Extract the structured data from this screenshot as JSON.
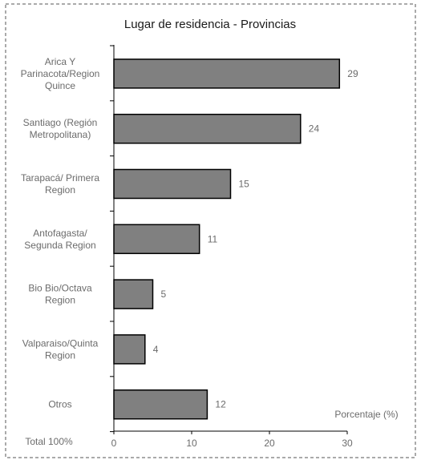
{
  "chart_data": {
    "type": "bar",
    "orientation": "horizontal",
    "title": "Lugar de residencia - Provincias",
    "categories": [
      [
        "Arica Y",
        "Parinacota/Region",
        "Quince"
      ],
      [
        "Santiago (Región",
        "Metropolitana)"
      ],
      [
        "Tarapacá/ Primera",
        "Region"
      ],
      [
        "Antofagasta/",
        "Segunda Region"
      ],
      [
        "Bio Bio/Octava",
        "Region"
      ],
      [
        "Valparaiso/Quinta",
        "Region"
      ],
      [
        "Otros"
      ]
    ],
    "values": [
      29,
      24,
      15,
      11,
      5,
      4,
      12
    ],
    "xlabel": "Porcentaje (%)",
    "xlim": [
      0,
      30
    ],
    "xticks": [
      0,
      10,
      20,
      30
    ],
    "footnote": "Total 100%",
    "grid": false,
    "legend": "none",
    "colors": {
      "bar": "#808080",
      "bar_stroke": "#000000",
      "axis": "#000000",
      "text": "#6b6b6b",
      "title": "#1a1a1a",
      "border": "#555555"
    }
  }
}
